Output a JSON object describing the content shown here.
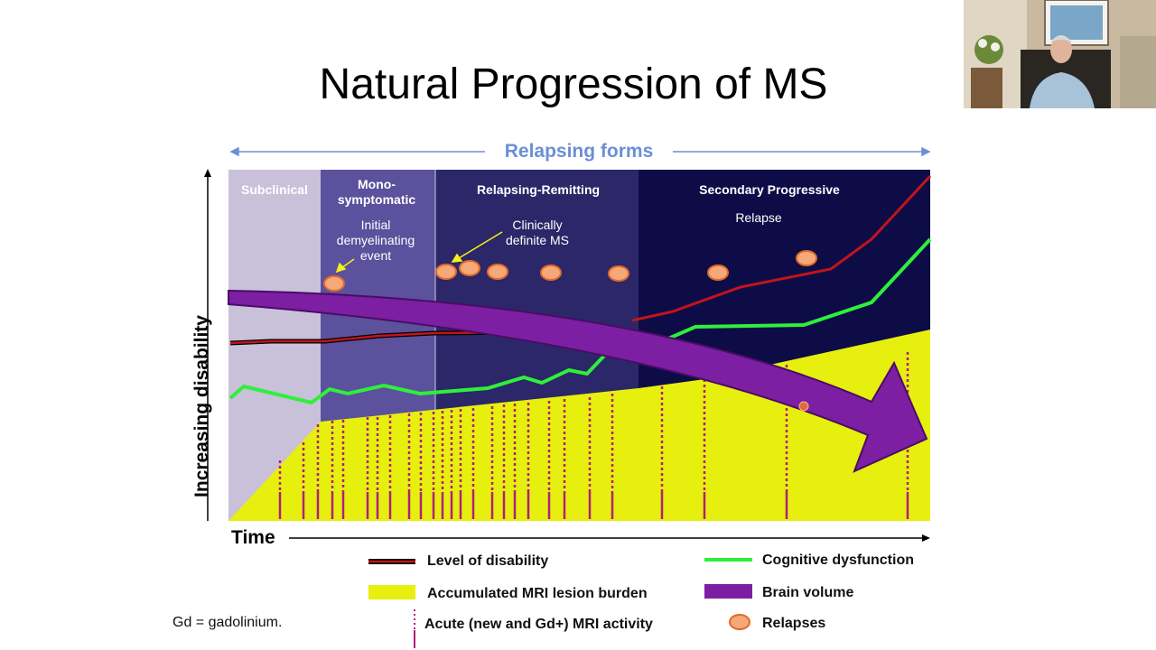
{
  "title": "Natural Progression of MS",
  "top_label": "Relapsing forms",
  "phases": [
    {
      "label": [
        "Subclinical"
      ]
    },
    {
      "label": [
        "Mono-",
        "symptomatic"
      ]
    },
    {
      "label": [
        "Relapsing-Remitting"
      ]
    },
    {
      "label": [
        "Secondary Progressive"
      ]
    }
  ],
  "annotations": [
    {
      "text": [
        "Initial",
        "demyelinating",
        "event"
      ]
    },
    {
      "text": [
        "Clinically",
        "definite MS"
      ]
    },
    {
      "text": [
        "Relapse"
      ]
    }
  ],
  "axes": {
    "y": "Increasing disability",
    "x": "Time"
  },
  "legend": [
    "Level of disability",
    "Cognitive dysfunction",
    "Accumulated MRI lesion burden",
    "Brain volume",
    "Acute (new and Gd+) MRI activity",
    "Relapses"
  ],
  "footnote": "Gd = gadolinium."
}
